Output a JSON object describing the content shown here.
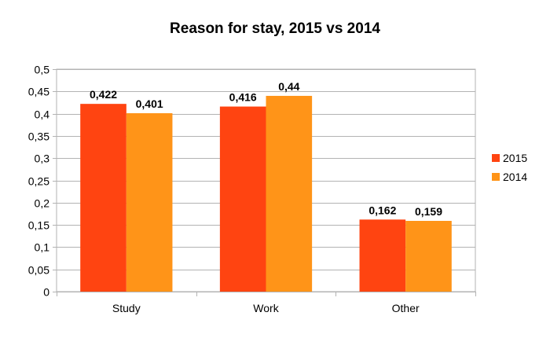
{
  "chart_data": {
    "type": "bar",
    "title": "Reason for stay, 2015 vs 2014",
    "xlabel": "",
    "ylabel": "",
    "categories": [
      "Study",
      "Work",
      "Other"
    ],
    "series": [
      {
        "name": "2015",
        "color": "#ff4411",
        "values": [
          0.422,
          0.416,
          0.162
        ]
      },
      {
        "name": "2014",
        "color": "#ff9418",
        "values": [
          0.401,
          0.44,
          0.159
        ]
      }
    ],
    "ylim": [
      0,
      0.5
    ],
    "y_ticks": [
      {
        "value": 0,
        "label": "0"
      },
      {
        "value": 0.05,
        "label": "0,05"
      },
      {
        "value": 0.1,
        "label": "0,1"
      },
      {
        "value": 0.15,
        "label": "0,15"
      },
      {
        "value": 0.2,
        "label": "0,2"
      },
      {
        "value": 0.25,
        "label": "0,25"
      },
      {
        "value": 0.3,
        "label": "0,3"
      },
      {
        "value": 0.35,
        "label": "0,35"
      },
      {
        "value": 0.4,
        "label": "0,4"
      },
      {
        "value": 0.45,
        "label": "0,45"
      },
      {
        "value": 0.5,
        "label": "0,5"
      }
    ],
    "data_labels": [
      [
        "0,422",
        "0,416",
        "0,162"
      ],
      [
        "0,401",
        "0,44",
        "0,159"
      ]
    ],
    "grid": true,
    "legend_position": "right"
  }
}
